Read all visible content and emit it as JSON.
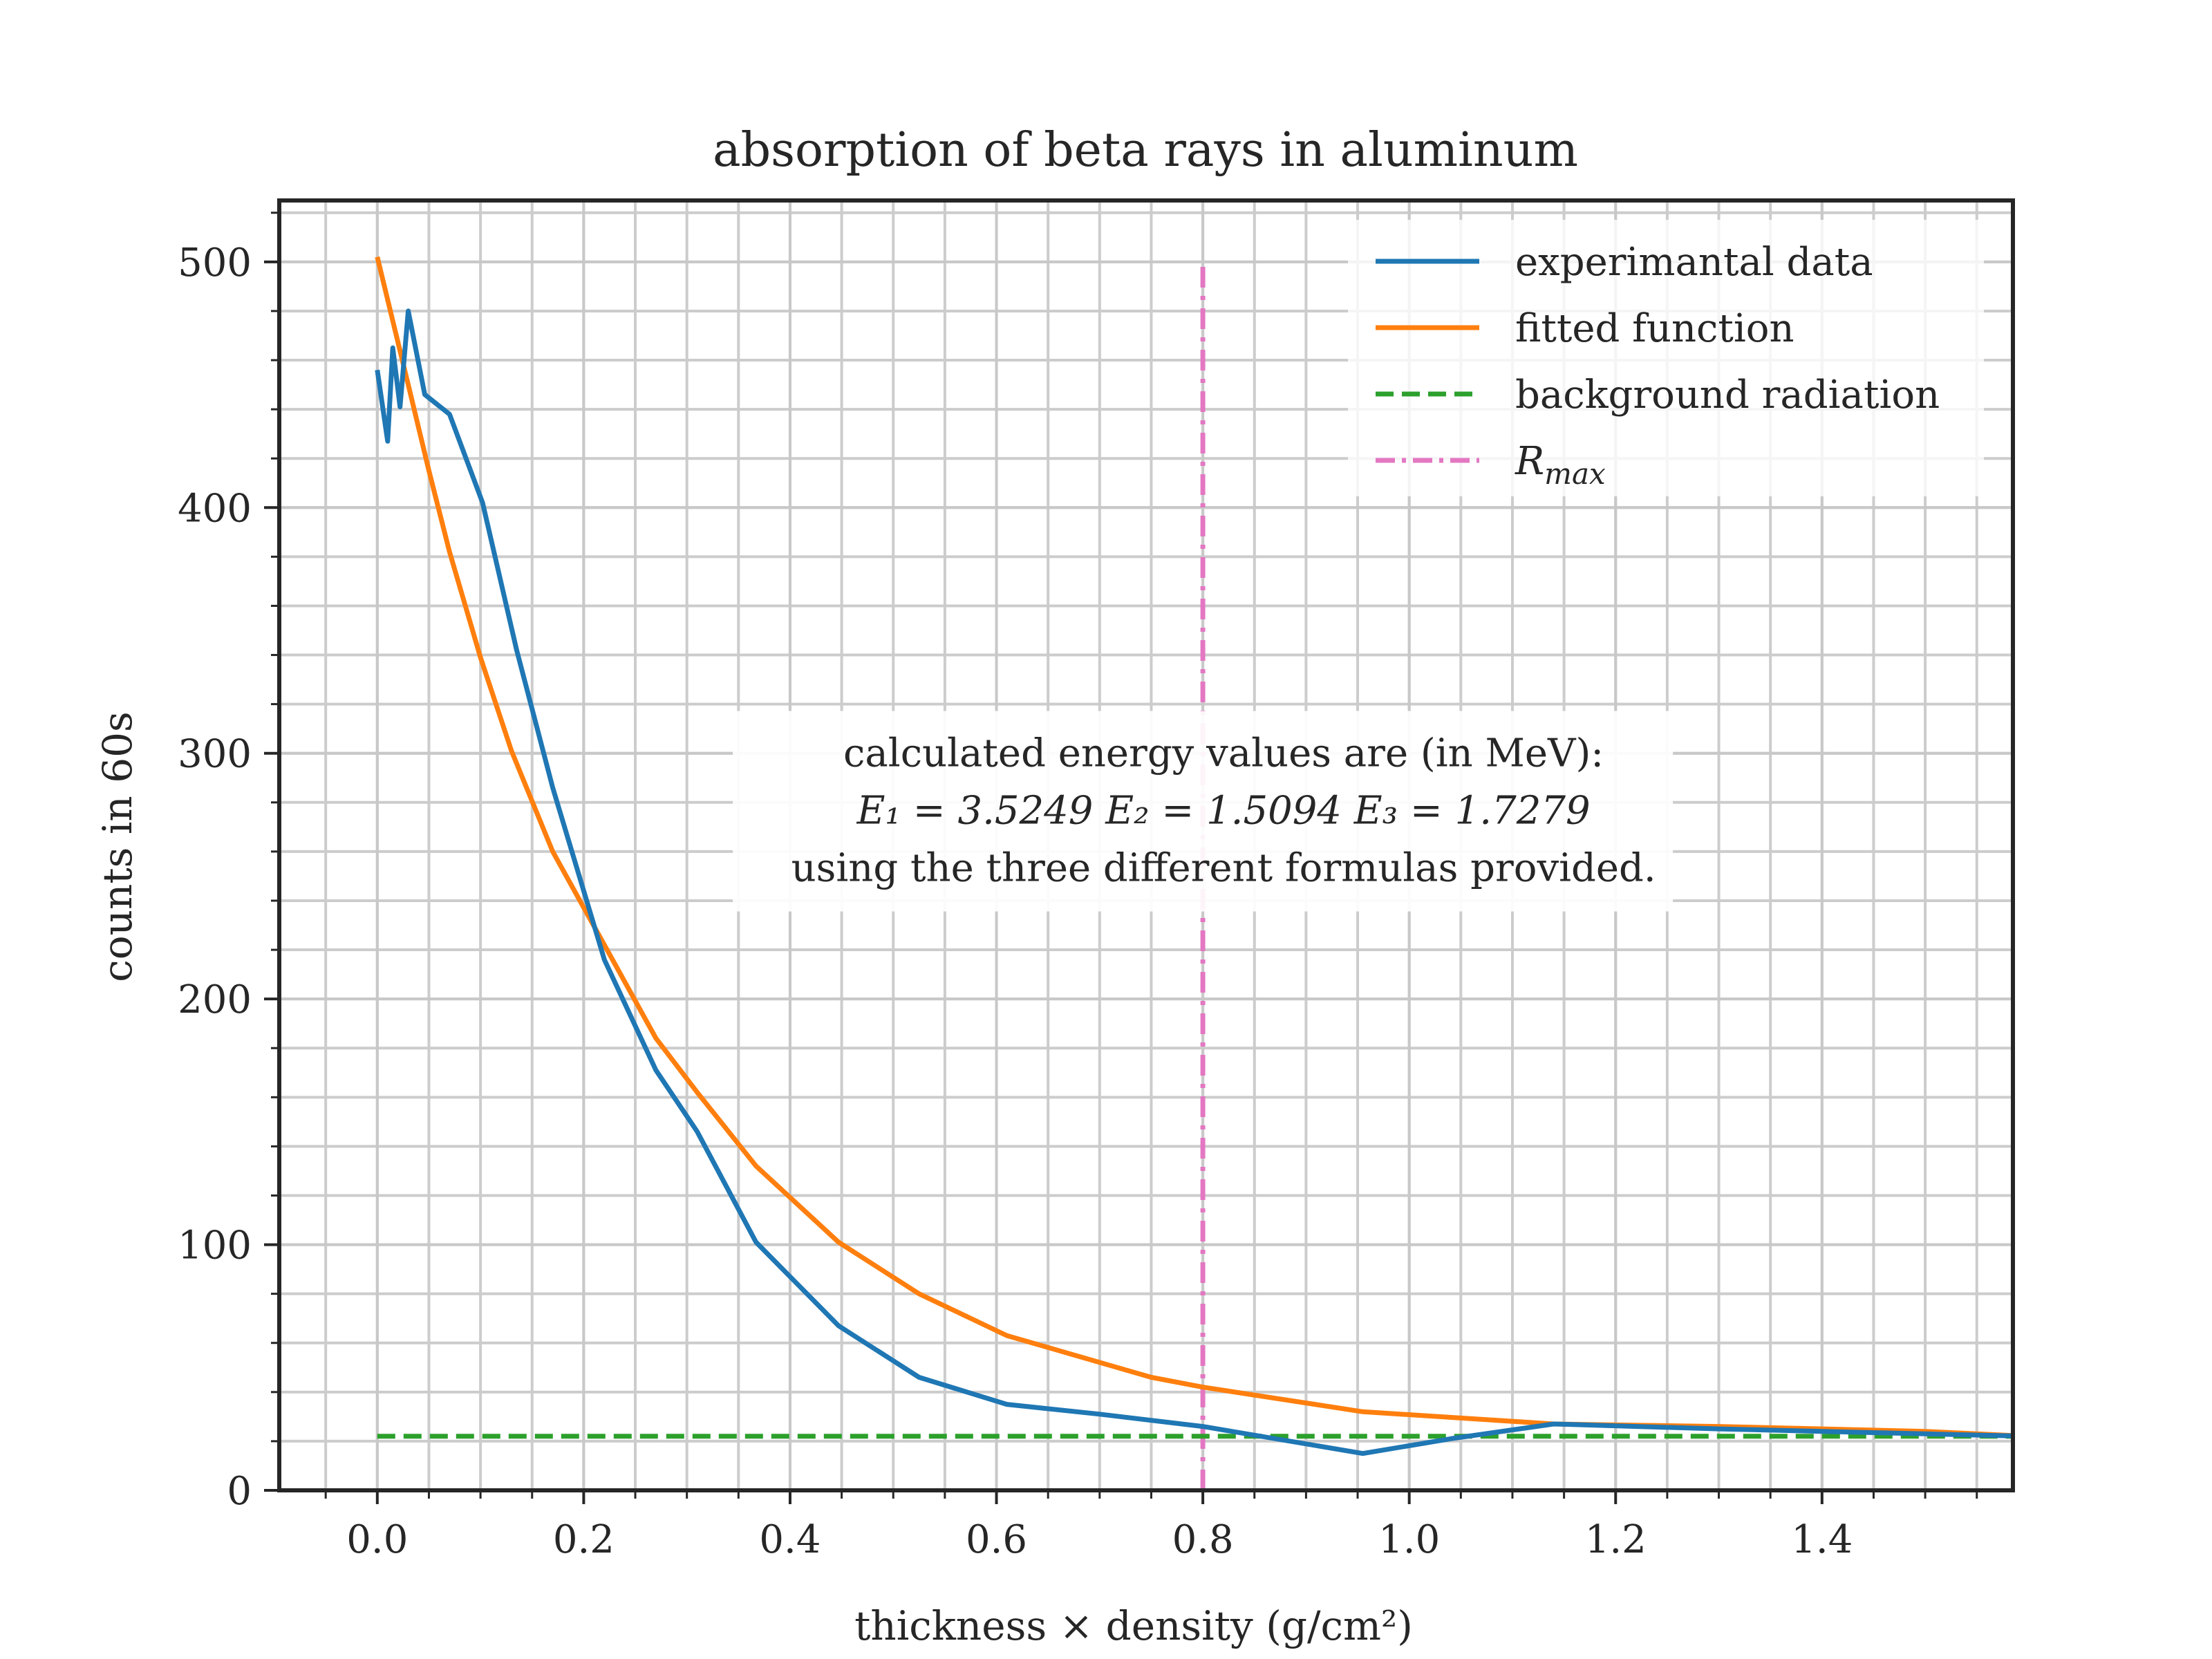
{
  "chart_data": {
    "type": "line",
    "title": "absorption of beta rays in aluminum",
    "xlabel": "thickness × density (g/cm²)",
    "ylabel": "counts in 60s",
    "xlim": [
      -0.095,
      1.585
    ],
    "ylim": [
      0,
      525
    ],
    "x_ticks": [
      0.0,
      0.2,
      0.4,
      0.6,
      0.8,
      1.0,
      1.2,
      1.4
    ],
    "x_tick_labels": [
      "0.0",
      "0.2",
      "0.4",
      "0.6",
      "0.8",
      "1.0",
      "1.2",
      "1.4"
    ],
    "y_ticks": [
      0,
      100,
      200,
      300,
      400,
      500
    ],
    "y_tick_labels": [
      "0",
      "100",
      "200",
      "300",
      "400",
      "500"
    ],
    "grid": true,
    "legend_position": "top-right",
    "series": [
      {
        "name": "experimantal data",
        "color": "#1f77b4",
        "style": "solid",
        "x": [
          0.0,
          0.01,
          0.015,
          0.022,
          0.03,
          0.046,
          0.07,
          0.102,
          0.135,
          0.17,
          0.22,
          0.27,
          0.31,
          0.367,
          0.447,
          0.525,
          0.61,
          0.7,
          0.8,
          0.955,
          1.04,
          1.14,
          1.3,
          1.5,
          1.6
        ],
        "y": [
          456,
          427,
          465,
          441,
          480,
          446,
          438,
          402,
          342,
          286,
          216,
          171,
          146,
          101,
          67,
          46,
          35,
          31,
          26,
          15,
          21,
          27,
          25,
          23,
          22
        ]
      },
      {
        "name": "fitted function",
        "color": "#ff7f0e",
        "style": "solid",
        "x": [
          0.0,
          0.03,
          0.05,
          0.07,
          0.1,
          0.13,
          0.17,
          0.22,
          0.27,
          0.31,
          0.367,
          0.447,
          0.525,
          0.61,
          0.75,
          0.8,
          0.955,
          1.14,
          1.3,
          1.5,
          1.6
        ],
        "y": [
          502,
          450,
          415,
          382,
          339,
          301,
          260,
          222,
          184,
          162,
          132,
          101,
          80,
          63,
          46,
          42,
          32,
          27,
          26,
          24,
          22
        ]
      },
      {
        "name": "background radiation",
        "color": "#2ca02c",
        "style": "dashed",
        "x": [
          0.0,
          1.6
        ],
        "y": [
          22,
          22
        ]
      },
      {
        "name": "R_max",
        "color": "#e377c2",
        "style": "dashdot",
        "x": [
          0.8,
          0.8
        ],
        "y": [
          0,
          500
        ]
      }
    ],
    "annotation": {
      "line1": "calculated energy values are (in MeV):",
      "line2": "E₁ = 3.5249     E₂ = 1.5094     E₃ = 1.7279",
      "line3": "using the three different formulas provided.",
      "center_x": 0.8,
      "center_y": 275
    }
  }
}
